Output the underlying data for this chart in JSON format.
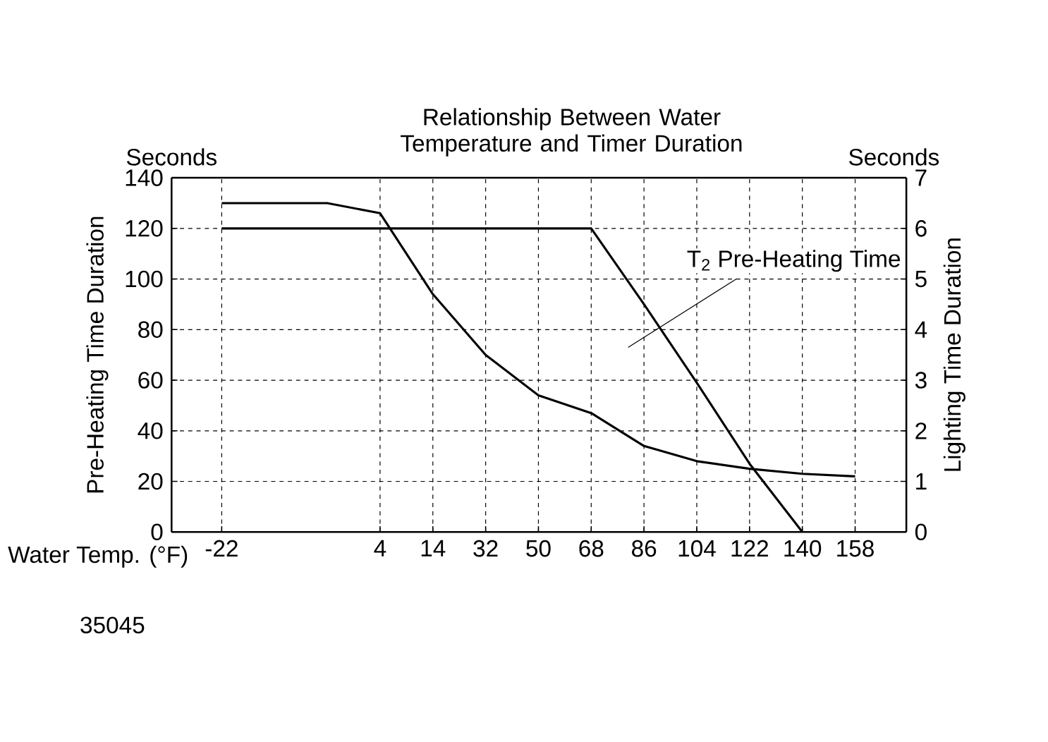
{
  "chart_data": {
    "type": "line",
    "title": "Relationship Between Water Temperature and Timer Duration",
    "xlabel": "Water Temp. (°F)",
    "ylabel": "Pre-Heating Time Duration",
    "y2label": "Lighting Time Duration",
    "categories": [
      "-22",
      null,
      null,
      "4",
      "14",
      "32",
      "50",
      "68",
      "86",
      "104",
      "122",
      "140",
      "158"
    ],
    "series": [
      {
        "color": "#000000",
        "values": [
          120,
          120,
          120,
          120,
          120,
          120,
          120,
          120,
          90,
          59,
          27,
          0,
          null
        ]
      },
      {
        "color": "#000000",
        "axis": "y2",
        "values": [
          6.5,
          6.5,
          6.5,
          6.3,
          4.7,
          3.5,
          2.7,
          2.35,
          1.7,
          1.4,
          1.25,
          1.15,
          1.1
        ]
      }
    ],
    "ylim": [
      0,
      140
    ],
    "yticks": [
      0,
      20,
      40,
      60,
      80,
      100,
      120,
      140
    ],
    "y2lim": [
      0,
      7
    ],
    "y2ticks": [
      0,
      1,
      2,
      3,
      4,
      5,
      6,
      7
    ],
    "grid": true,
    "marker": "none",
    "line_style": "solid",
    "annotations": [
      "Seconds",
      "Seconds",
      "T$_{2}$ Pre-Heating Time",
      "35045"
    ]
  }
}
